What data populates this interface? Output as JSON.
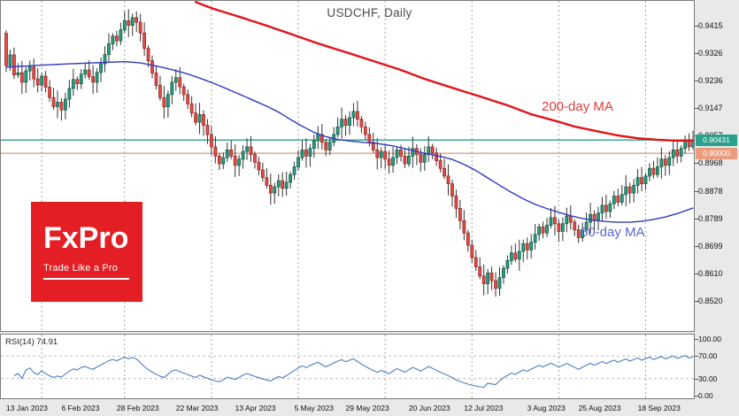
{
  "header": {
    "title": "USDCHF, Daily"
  },
  "watermark": {
    "brand": "FxPro",
    "tagline": "Trade Like a Pro",
    "bg_color": "#e31e24"
  },
  "overlays": {
    "ma200_label": "200-day MA",
    "ma200_label_color": "#e23b38",
    "ma50_label": "50-day MA",
    "ma50_label_color": "#5a67cf"
  },
  "rsi_panel": {
    "label": "RSI(14) 74.91",
    "axis_labels": [
      "100.00",
      "70.00",
      "30.00",
      "0.00"
    ],
    "axis_values": [
      100,
      70,
      30,
      0
    ],
    "line_color": "#4a80bf"
  },
  "price_axis": {
    "ticks": [
      "0.9415",
      "0.9326",
      "0.9236",
      "0.9147",
      "0.9057",
      "0.8968",
      "0.8878",
      "0.8789",
      "0.8699",
      "0.8610",
      "0.8520"
    ]
  },
  "date_axis": {
    "ticks": [
      {
        "label": "13 Jan 2023",
        "day": 0
      },
      {
        "label": "6 Feb 2023",
        "day": 14
      },
      {
        "label": "28 Feb 2023",
        "day": 28
      },
      {
        "label": "22 Mar 2023",
        "day": 43
      },
      {
        "label": "13 Apr 2023",
        "day": 58
      },
      {
        "label": "5 May 2023",
        "day": 73
      },
      {
        "label": "29 May 2023",
        "day": 86
      },
      {
        "label": "20 Jun 2023",
        "day": 102
      },
      {
        "label": "12 Jul 2023",
        "day": 116
      },
      {
        "label": "3 Aug 2023",
        "day": 132
      },
      {
        "label": "25 Aug 2023",
        "day": 145
      },
      {
        "label": "18 Sep 2023",
        "day": 160
      }
    ]
  },
  "chart_data": {
    "type": "candlestick",
    "title": "USDCHF, Daily",
    "symbol": "USDCHF",
    "timeframe": "Daily",
    "ylim": [
      0.852,
      0.9415
    ],
    "grid_days": [
      9,
      30,
      52,
      74,
      96,
      118,
      140,
      162
    ],
    "first_open": 0.939,
    "closes": [
      0.9285,
      0.932,
      0.9255,
      0.9262,
      0.9231,
      0.9268,
      0.9281,
      0.9242,
      0.9222,
      0.9251,
      0.9215,
      0.9181,
      0.9152,
      0.9166,
      0.9141,
      0.9176,
      0.9211,
      0.924,
      0.9226,
      0.9257,
      0.9271,
      0.9249,
      0.9231,
      0.9263,
      0.9291,
      0.9321,
      0.9356,
      0.9381,
      0.9366,
      0.9401,
      0.9431,
      0.9416,
      0.9441,
      0.9426,
      0.9391,
      0.9341,
      0.9301,
      0.9261,
      0.9221,
      0.9181,
      0.9151,
      0.9191,
      0.9231,
      0.9246,
      0.9216,
      0.9191,
      0.9161,
      0.9131,
      0.9101,
      0.9126,
      0.9091,
      0.9061,
      0.9021,
      0.8991,
      0.8966,
      0.8986,
      0.9011,
      0.8991,
      0.8961,
      0.8981,
      0.9006,
      0.9021,
      0.8996,
      0.8971,
      0.8946,
      0.8921,
      0.8896,
      0.8871,
      0.8891,
      0.8911,
      0.8886,
      0.8906,
      0.8931,
      0.8956,
      0.8986,
      0.9011,
      0.8991,
      0.9016,
      0.9041,
      0.9061,
      0.9036,
      0.9011,
      0.9036,
      0.9061,
      0.9086,
      0.9111,
      0.9091,
      0.9116,
      0.9136,
      0.9111,
      0.9086,
      0.9061,
      0.9036,
      0.9011,
      0.8986,
      0.9006,
      0.8981,
      0.8961,
      0.8986,
      0.9011,
      0.8991,
      0.8966,
      0.8991,
      0.9016,
      0.8996,
      0.8971,
      0.8996,
      0.9021,
      0.9001,
      0.8976,
      0.8951,
      0.8926,
      0.8901,
      0.8861,
      0.8821,
      0.8781,
      0.8741,
      0.8701,
      0.8661,
      0.8631,
      0.8601,
      0.8576,
      0.8611,
      0.8586,
      0.8561,
      0.8596,
      0.8626,
      0.8651,
      0.8676,
      0.8656,
      0.8681,
      0.8706,
      0.8686,
      0.8711,
      0.8736,
      0.8761,
      0.8741,
      0.8766,
      0.8791,
      0.8771,
      0.8746,
      0.8771,
      0.8796,
      0.8776,
      0.8751,
      0.8726,
      0.8751,
      0.8776,
      0.8801,
      0.8781,
      0.8806,
      0.8831,
      0.8811,
      0.8836,
      0.8861,
      0.8841,
      0.8866,
      0.8891,
      0.8871,
      0.8896,
      0.8921,
      0.8901,
      0.8926,
      0.8951,
      0.8931,
      0.8956,
      0.8981,
      0.8961,
      0.8986,
      0.9011,
      0.8991,
      0.9016,
      0.9041,
      0.9021,
      0.9043
    ],
    "hlines": [
      {
        "label": "0.90431",
        "value": 0.90431,
        "color": "#2aa08d"
      },
      {
        "label": "0.90000",
        "value": 0.9,
        "color": "#ea9c7c"
      }
    ],
    "series": [
      {
        "name": "200-day MA",
        "color": "#e31219",
        "width": 2.4,
        "points": [
          [
            48,
            0.9492
          ],
          [
            52,
            0.9472
          ],
          [
            60,
            0.944
          ],
          [
            66,
            0.9415
          ],
          [
            73,
            0.9384
          ],
          [
            79,
            0.9357
          ],
          [
            86,
            0.9329
          ],
          [
            93,
            0.93
          ],
          [
            100,
            0.9271
          ],
          [
            106,
            0.9242
          ],
          [
            113,
            0.9213
          ],
          [
            120,
            0.9185
          ],
          [
            127,
            0.9156
          ],
          [
            133,
            0.9127
          ],
          [
            139,
            0.9106
          ],
          [
            144,
            0.9087
          ],
          [
            150,
            0.9071
          ],
          [
            155,
            0.9058
          ],
          [
            160,
            0.9049
          ],
          [
            165,
            0.9044
          ],
          [
            170,
            0.9041
          ],
          [
            174,
            0.9042
          ]
        ]
      },
      {
        "name": "50-day MA",
        "color": "#3039c0",
        "width": 1.4,
        "points": [
          [
            0,
            0.928
          ],
          [
            8,
            0.9286
          ],
          [
            16,
            0.9291
          ],
          [
            24,
            0.9295
          ],
          [
            30,
            0.9298
          ],
          [
            34,
            0.9294
          ],
          [
            38,
            0.9284
          ],
          [
            42,
            0.9272
          ],
          [
            46,
            0.9258
          ],
          [
            50,
            0.924
          ],
          [
            54,
            0.922
          ],
          [
            58,
            0.9198
          ],
          [
            62,
            0.9176
          ],
          [
            66,
            0.9153
          ],
          [
            69,
            0.9134
          ],
          [
            72,
            0.911
          ],
          [
            75,
            0.9088
          ],
          [
            78,
            0.9068
          ],
          [
            81,
            0.9054
          ],
          [
            84,
            0.9045
          ],
          [
            87,
            0.904
          ],
          [
            90,
            0.9036
          ],
          [
            94,
            0.9032
          ],
          [
            98,
            0.9024
          ],
          [
            102,
            0.9012
          ],
          [
            106,
            0.9
          ],
          [
            110,
            0.899
          ],
          [
            113,
            0.898
          ],
          [
            116,
            0.8964
          ],
          [
            119,
            0.8944
          ],
          [
            122,
            0.892
          ],
          [
            125,
            0.8896
          ],
          [
            128,
            0.8873
          ],
          [
            131,
            0.8852
          ],
          [
            134,
            0.8834
          ],
          [
            137,
            0.882
          ],
          [
            140,
            0.8808
          ],
          [
            143,
            0.8797
          ],
          [
            146,
            0.8788
          ],
          [
            149,
            0.8782
          ],
          [
            152,
            0.8778
          ],
          [
            155,
            0.8776
          ],
          [
            158,
            0.8776
          ],
          [
            161,
            0.8779
          ],
          [
            164,
            0.8785
          ],
          [
            167,
            0.8793
          ],
          [
            170,
            0.8804
          ],
          [
            174,
            0.8822
          ]
        ]
      }
    ],
    "indicator": {
      "name": "RSI",
      "period": 14,
      "last_value": 74.91,
      "levels": [
        70,
        30
      ]
    },
    "candle_colors": {
      "up": "#2e9c80",
      "down": "#e14d4a"
    }
  }
}
